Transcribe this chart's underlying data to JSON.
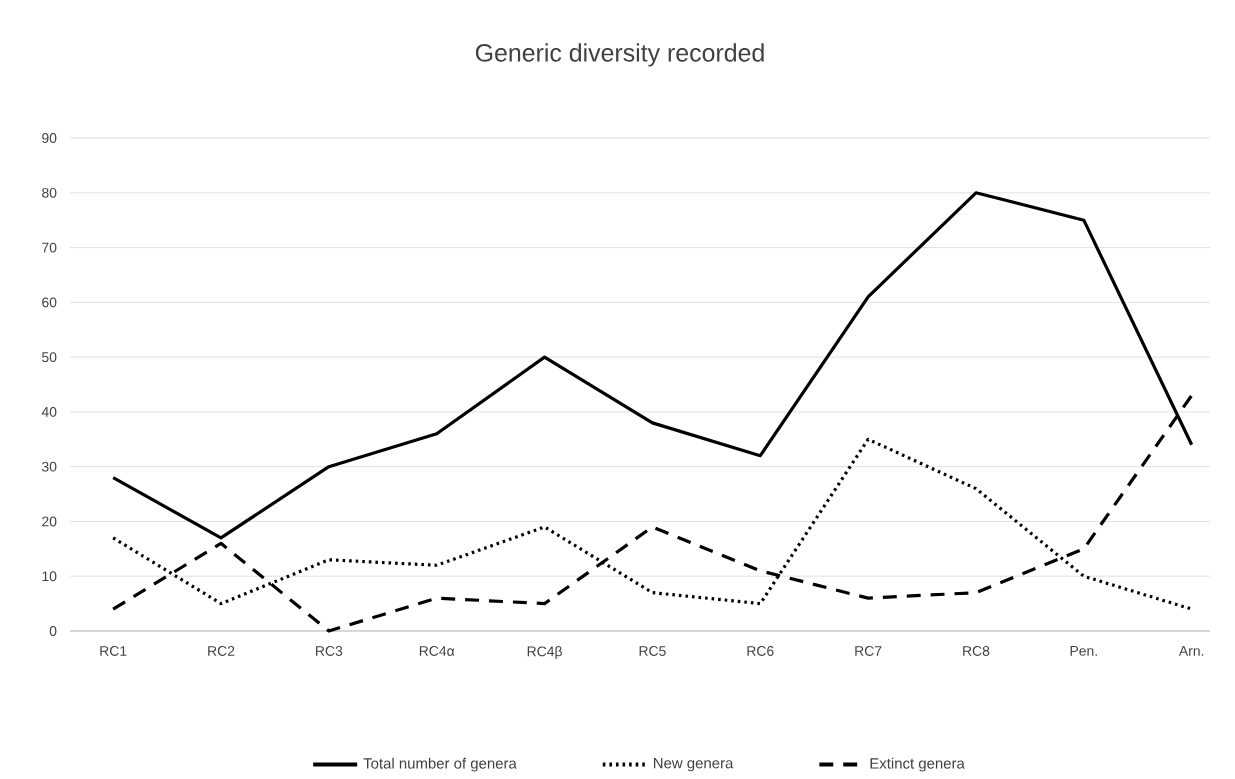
{
  "chart_data": {
    "type": "line",
    "title": "Generic diversity recorded",
    "categories": [
      "RC1",
      "RC2",
      "RC3",
      "RC4α",
      "RC4β",
      "RC5",
      "RC6",
      "RC7",
      "RC8",
      "Pen.",
      "Arn."
    ],
    "series": [
      {
        "name": "Total number of genera",
        "color": "#000000",
        "line_style": "solid",
        "values": [
          28,
          17,
          30,
          36,
          50,
          38,
          32,
          61,
          80,
          75,
          34
        ]
      },
      {
        "name": "New genera",
        "color": "#000000",
        "line_style": "dotted",
        "values": [
          17,
          5,
          13,
          12,
          19,
          7,
          5,
          35,
          26,
          10,
          4
        ]
      },
      {
        "name": "Extinct genera",
        "color": "#000000",
        "line_style": "dashed",
        "values": [
          4,
          16,
          0,
          6,
          5,
          19,
          11,
          6,
          7,
          15,
          43
        ]
      }
    ],
    "ylim": [
      0,
      90
    ],
    "yticks": [
      0,
      10,
      20,
      30,
      40,
      50,
      60,
      70,
      80,
      90
    ],
    "grid": "y",
    "legend": "bottom",
    "marker": "none"
  }
}
